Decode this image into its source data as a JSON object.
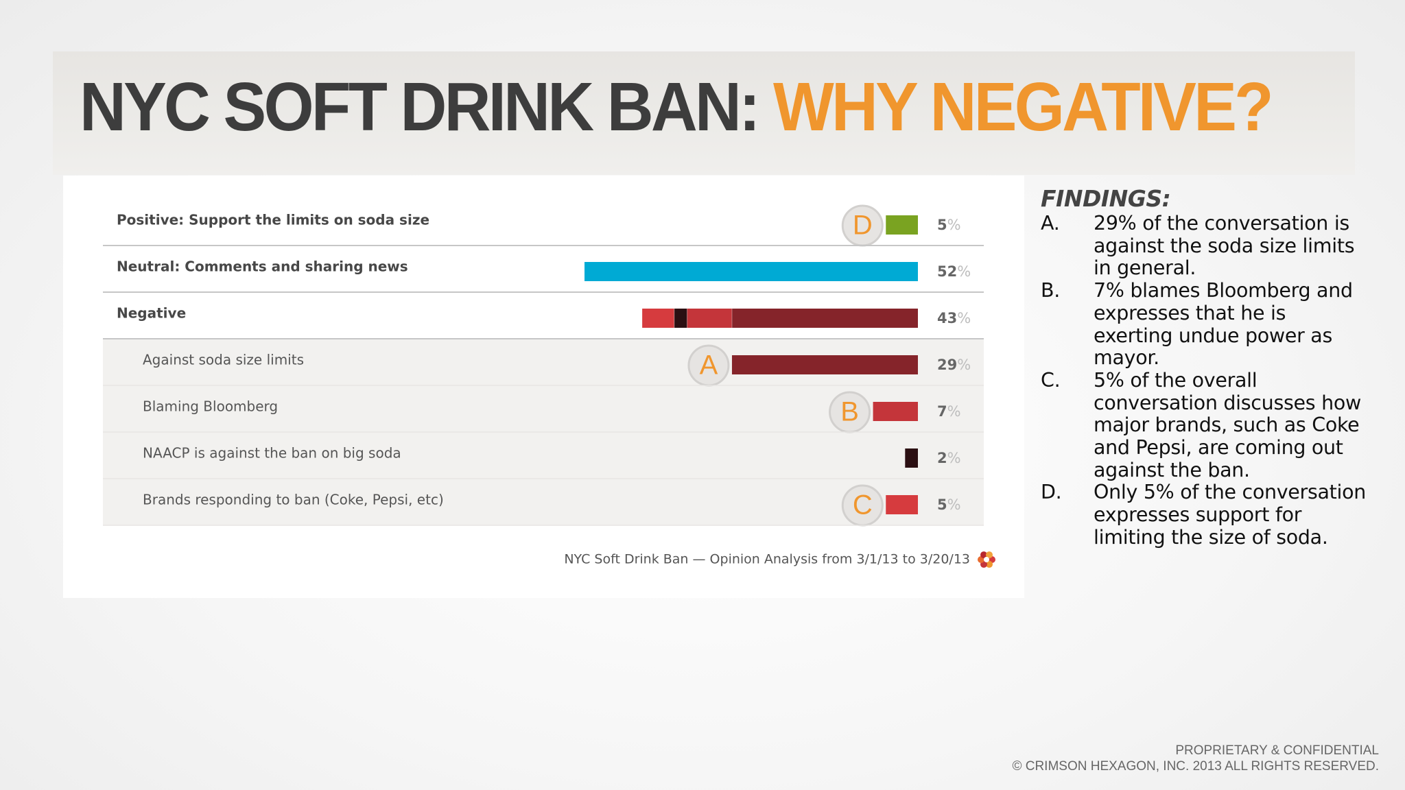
{
  "title": {
    "part1": "NYC SOFT DRINK BAN:",
    "part2": "WHY NEGATIVE?"
  },
  "colors": {
    "title_dark": "#3d3d3d",
    "title_accent": "#f0962e",
    "positive": "#7aa321",
    "neutral": "#00aad4",
    "negative_dark": "#85242a",
    "negative_red": "#d63b3e",
    "negative_black": "#2b0f12"
  },
  "chart_data": {
    "type": "bar",
    "orientation": "horizontal",
    "value_unit": "%",
    "xlim": [
      0,
      55
    ],
    "rows": [
      {
        "label": "Positive: Support the limits on soda size",
        "value": 5,
        "marker": "D",
        "level": "top",
        "color": "#7aa321"
      },
      {
        "label": "Neutral: Comments and sharing news",
        "value": 52,
        "marker": "",
        "level": "top",
        "color": "#00aad4"
      },
      {
        "label": "Negative",
        "value": 43,
        "marker": "",
        "level": "top",
        "segments": [
          {
            "value": 5,
            "color": "#d63b3e"
          },
          {
            "value": 2,
            "color": "#2b0f12"
          },
          {
            "value": 7,
            "color": "#c4353a"
          },
          {
            "value": 29,
            "color": "#85242a"
          }
        ]
      },
      {
        "label": "Against soda size limits",
        "value": 29,
        "marker": "A",
        "level": "sub",
        "color": "#85242a"
      },
      {
        "label": "Blaming Bloomberg",
        "value": 7,
        "marker": "B",
        "level": "sub",
        "color": "#c4353a"
      },
      {
        "label": "NAACP is against the ban on big soda",
        "value": 2,
        "marker": "",
        "level": "sub",
        "color": "#2b0f12"
      },
      {
        "label": "Brands responding to ban (Coke, Pepsi, etc)",
        "value": 5,
        "marker": "C",
        "level": "sub",
        "color": "#d63b3e"
      }
    ],
    "caption": "NYC Soft Drink Ban — Opinion Analysis from 3/1/13 to 3/20/13"
  },
  "findings": {
    "title": "FINDINGS:",
    "items": [
      {
        "letter": "A.",
        "text": "29% of the conversation is against the soda size limits in general."
      },
      {
        "letter": "B.",
        "text": "7% blames Bloomberg and expresses that he is exerting undue power as mayor."
      },
      {
        "letter": "C.",
        "text": "5% of the overall conversation discusses how major brands, such as Coke and Pepsi, are coming out against the ban."
      },
      {
        "letter": "D.",
        "text": "Only 5% of the conversation expresses support for limiting the size of soda."
      }
    ]
  },
  "footer": {
    "line1": "PROPRIETARY & CONFIDENTIAL",
    "line2": "© CRIMSON HEXAGON, INC.  2013  ALL RIGHTS RESERVED."
  }
}
